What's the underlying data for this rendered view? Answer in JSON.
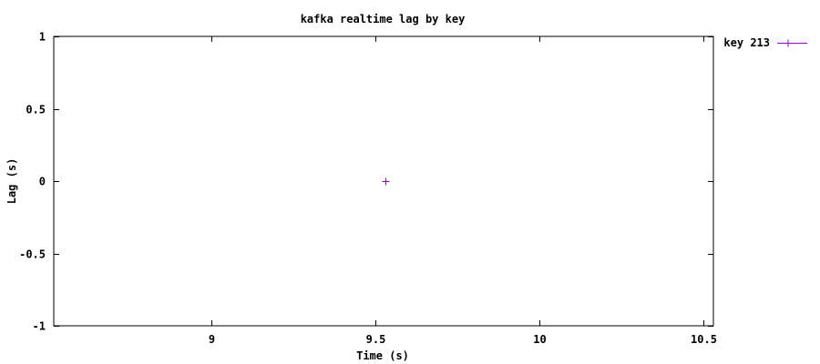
{
  "chart_data": {
    "type": "scatter",
    "title": "kafka realtime lag by key",
    "xlabel": "Time (s)",
    "ylabel": "Lag (s)",
    "xlim": [
      8.52,
      10.53
    ],
    "ylim": [
      -1,
      1
    ],
    "xticks": [
      {
        "value": 9,
        "label": "9"
      },
      {
        "value": 9.5,
        "label": "9.5"
      },
      {
        "value": 10,
        "label": "10"
      },
      {
        "value": 10.5,
        "label": "10.5"
      }
    ],
    "yticks": [
      {
        "value": 1,
        "label": "1"
      },
      {
        "value": 0.5,
        "label": "0.5"
      },
      {
        "value": 0,
        "label": "0"
      },
      {
        "value": -0.5,
        "label": "-0.5"
      },
      {
        "value": -1,
        "label": "-1"
      }
    ],
    "grid": false,
    "legend_position": "outside-top-right",
    "series": [
      {
        "name": "key 213",
        "color": "#9400d3",
        "marker": "plus",
        "points": [
          {
            "x": 9.53,
            "y": 0
          }
        ]
      }
    ]
  }
}
